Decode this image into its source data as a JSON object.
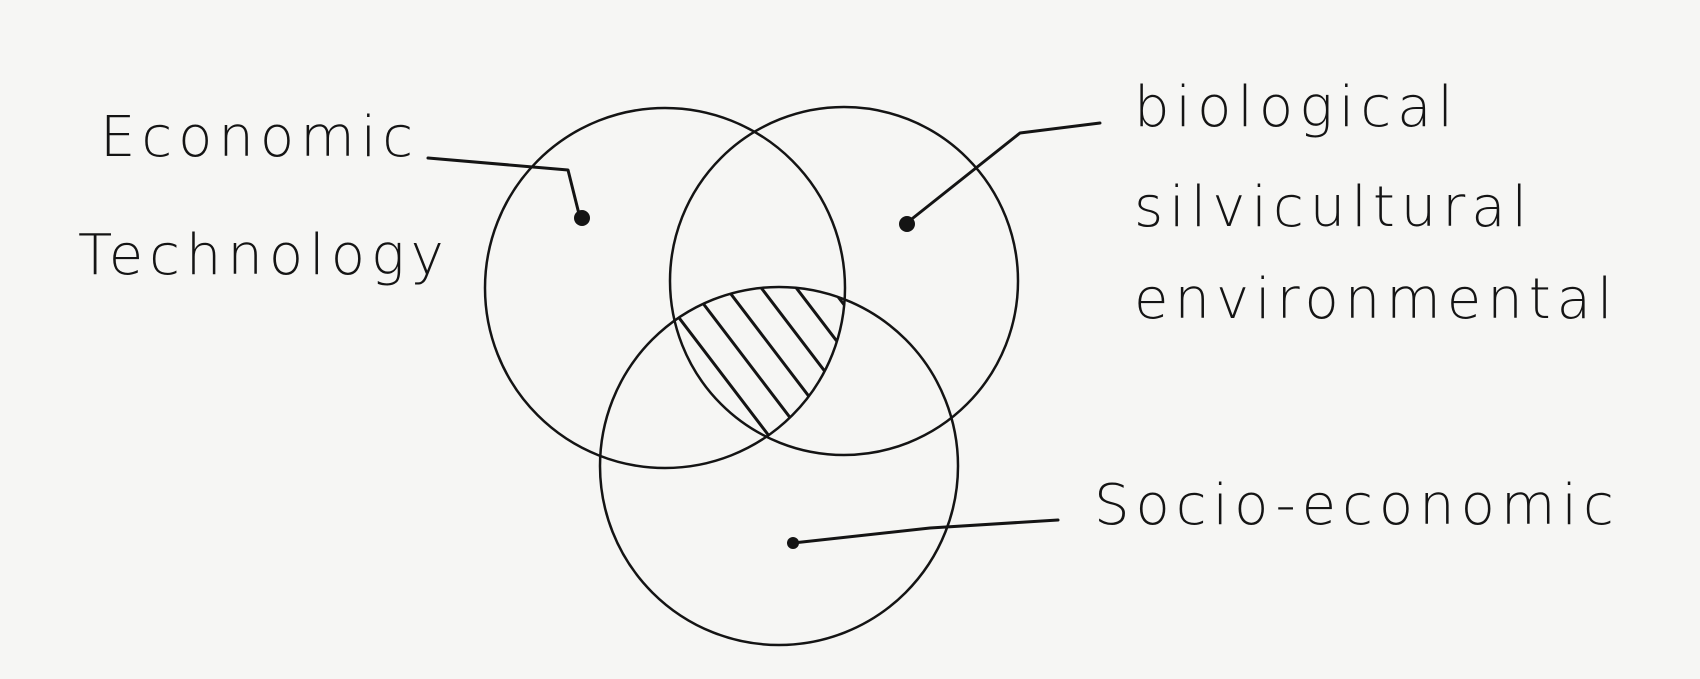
{
  "colors": {
    "ink": "#141414",
    "paper": "#f6f6f4"
  },
  "labels": {
    "economic": "Economic",
    "technology": "Technology",
    "biological": "biological",
    "silvicultural": "silvicultural",
    "environmental": "environmental",
    "socio_economic": "Socio-economic"
  }
}
